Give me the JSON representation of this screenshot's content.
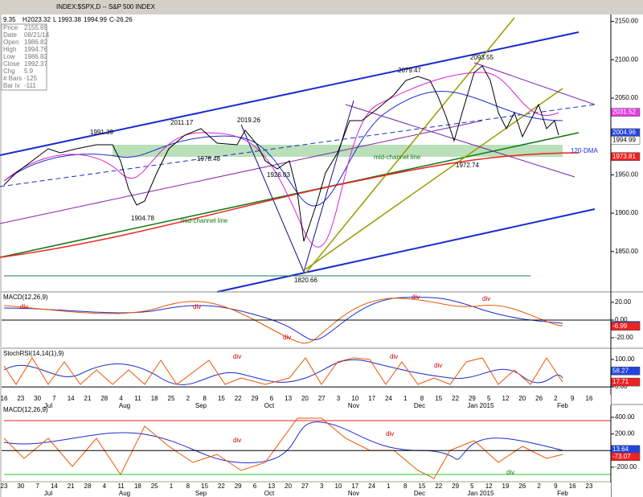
{
  "toolbar": {
    "symbol": "INDEX:$SPX,D -- S&P 500 INDEX",
    "fields": [
      "9.35",
      "H",
      "2023.32",
      "L",
      "1993.38",
      "1994.99",
      "C",
      "-26.26"
    ]
  },
  "info_box": [
    [
      "Price",
      "2155.69"
    ],
    [
      "Date",
      "08/21/14"
    ],
    [
      "Open",
      "1986.82"
    ],
    [
      "High",
      "1994.76"
    ],
    [
      "Low",
      "1986.82"
    ],
    [
      "Close",
      "1992.37"
    ],
    [
      "Chg",
      "5.9"
    ],
    [
      "# Bars",
      "-125"
    ],
    [
      "Bar Ix",
      "-111"
    ]
  ],
  "panels": [
    {
      "title": null,
      "ylim": [
        1811,
        2159
      ],
      "yticks": [
        {
          "value": 2150,
          "label": "2150.00"
        },
        {
          "value": 2100,
          "label": "2100.00"
        },
        {
          "value": 2050,
          "label": "2050.00"
        },
        {
          "value": 2000,
          "label": "2000.00"
        },
        {
          "value": 1950,
          "label": "1950.00"
        },
        {
          "value": 1900,
          "label": "1900.00"
        },
        {
          "value": 1850,
          "label": "1850.00"
        }
      ],
      "tags": [
        {
          "value": 2031.52,
          "color": "#e040e0"
        },
        {
          "value": 2004.96,
          "color": "#2244dd"
        },
        {
          "value": 1994.99,
          "color": "#ffffff"
        },
        {
          "value": 1973.81,
          "color": "#ee2222"
        }
      ]
    },
    {
      "title": "MACD(12,26,9)",
      "ylim": [
        -30.9,
        30
      ],
      "yticks": [
        {
          "value": 20,
          "label": "20.00"
        },
        {
          "value": 0,
          "label": "0.00"
        },
        {
          "value": -20,
          "label": "-20.00"
        }
      ],
      "tags": [
        {
          "value": -5.99,
          "color": "#2244dd"
        },
        {
          "value": -6.99,
          "color": "#ee2222"
        }
      ]
    },
    {
      "title": "StochRSI(14,14(1),9)",
      "ylim": [
        -26,
        135
      ],
      "yticks": [
        {
          "value": 100,
          "label": "100.00"
        },
        {
          "value": 0,
          "label": "0.00"
        }
      ],
      "tags": [
        {
          "value": 58.27,
          "color": "#2244dd"
        },
        {
          "value": 17.71,
          "color": "#ee2222"
        }
      ]
    },
    {
      "title": "MACD(12,26,9)",
      "ylim": [
        -365,
        535
      ],
      "yticks": [
        {
          "value": 400,
          "label": "400.00"
        },
        {
          "value": 200,
          "label": "200.00"
        },
        {
          "value": 0,
          "label": "0.00"
        },
        {
          "value": -200,
          "label": "-200.00"
        }
      ],
      "tags": [
        {
          "value": 13.64,
          "color": "#2244dd"
        },
        {
          "value": -73.07,
          "color": "#ee2222"
        }
      ]
    }
  ],
  "annotations": [
    "1991.39",
    "2011.17",
    "2019.26",
    "1978.48",
    "1926.03",
    "1904.78",
    "mid-channel line",
    "mid-channel line",
    "1820.66",
    "2079.47",
    "2093.55",
    "1972.74",
    "120-DMA",
    "div",
    "div",
    "div",
    "div",
    "div",
    "div",
    "div",
    "div",
    "div",
    "div",
    "div"
  ],
  "date_axis_top": {
    "days": [
      "16",
      "23",
      "30",
      "7",
      "14",
      "21",
      "28",
      "4",
      "11",
      "18",
      "25",
      "2",
      "8",
      "15",
      "22",
      "29",
      "6",
      "13",
      "20",
      "27",
      "3",
      "10",
      "17",
      "24",
      "1",
      "8",
      "15",
      "22",
      "29",
      "5",
      "12",
      "20",
      "26",
      "2",
      "9",
      "16"
    ],
    "months": [
      "Jul",
      "Aug",
      "Sep",
      "Oct",
      "Nov",
      "Dec",
      "Jan 2015",
      "Feb"
    ]
  },
  "date_axis_bottom": {
    "days": [
      "23",
      "30",
      "7",
      "14",
      "21",
      "28",
      "4",
      "11",
      "18",
      "25",
      "1",
      "8",
      "15",
      "22",
      "29",
      "6",
      "13",
      "20",
      "27",
      "3",
      "10",
      "17",
      "24",
      "1",
      "8",
      "15",
      "22",
      "29",
      "5",
      "12",
      "19",
      "26",
      "2",
      "9",
      "16",
      "23"
    ],
    "months": [
      "Jul",
      "Aug",
      "Sep",
      "Oct",
      "Nov",
      "Dec",
      "Jan 2015",
      "Feb"
    ]
  }
}
